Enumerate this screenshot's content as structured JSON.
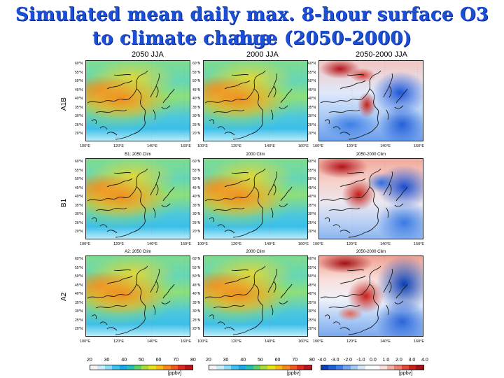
{
  "title": {
    "line1": "Simulated mean daily max. 8-hour surface O3 due",
    "line2": "to climate change (2050-2000)"
  },
  "columns": [
    {
      "id": "c2050",
      "header": "2050    JJA"
    },
    {
      "id": "c2000",
      "header": "2000    JJA"
    },
    {
      "id": "cdiff",
      "header": "2050-2000  JJA"
    }
  ],
  "rows": [
    {
      "id": "a1b",
      "label": "A1B",
      "titles": [
        "",
        "",
        ""
      ]
    },
    {
      "id": "b1",
      "label": "B1",
      "titles": [
        "B1: 2050 Clim",
        "2000 Clim",
        "2050-2000 Clim"
      ]
    },
    {
      "id": "a2",
      "label": "A2",
      "titles": [
        "A2: 2050 Clim",
        "2000 Clim",
        "2050-2000 Clim"
      ]
    }
  ],
  "lat_ticks": [
    "60°N",
    "55°N",
    "50°N",
    "45°N",
    "40°N",
    "35°N",
    "30°N",
    "25°N",
    "20°N"
  ],
  "lat_ticks_row1": [
    "60°N",
    "55°N",
    "50°N",
    "45°N",
    "40°N",
    "35°N",
    "30°N",
    "25°N",
    "20°N"
  ],
  "lon_ticks": [
    "100°E",
    "120°E",
    "140°E",
    "160°E"
  ],
  "colorbars": [
    {
      "id": "conc1",
      "ticks": [
        "20",
        "30",
        "40",
        "50",
        "60",
        "70",
        "80"
      ],
      "unit": "[ppbv]",
      "colors": [
        "#f6f6f6",
        "#cdeffb",
        "#8fdcf6",
        "#3fc3ee",
        "#1aa8e8",
        "#26c0b0",
        "#5fd06a",
        "#a6dd3c",
        "#e5e21e",
        "#f9b813",
        "#f58a1f",
        "#ef5a1f",
        "#e12a1f",
        "#b8141a"
      ]
    },
    {
      "id": "conc2",
      "ticks": [
        "20",
        "30",
        "40",
        "50",
        "60",
        "70",
        "80"
      ],
      "unit": "[ppbv]",
      "colors": [
        "#f6f6f6",
        "#cdeffb",
        "#8fdcf6",
        "#3fc3ee",
        "#1aa8e8",
        "#26c0b0",
        "#5fd06a",
        "#a6dd3c",
        "#e5e21e",
        "#f9b813",
        "#f58a1f",
        "#ef5a1f",
        "#e12a1f",
        "#b8141a"
      ]
    },
    {
      "id": "diff",
      "ticks": [
        "-4.0",
        "-3.0",
        "-2.0",
        "-1.0",
        "0.0",
        "1.0",
        "2.0",
        "3.0",
        "4.0"
      ],
      "unit": "[ppbv]",
      "colors": [
        "#0a3fb5",
        "#1f5fd8",
        "#3d7fe6",
        "#74a6ef",
        "#a9c9f5",
        "#d8e7fb",
        "#ffffff",
        "#ffffff",
        "#fbe0dc",
        "#f5b3a8",
        "#ec7f6e",
        "#df4a3a",
        "#c8201a",
        "#a30f12"
      ]
    }
  ]
}
